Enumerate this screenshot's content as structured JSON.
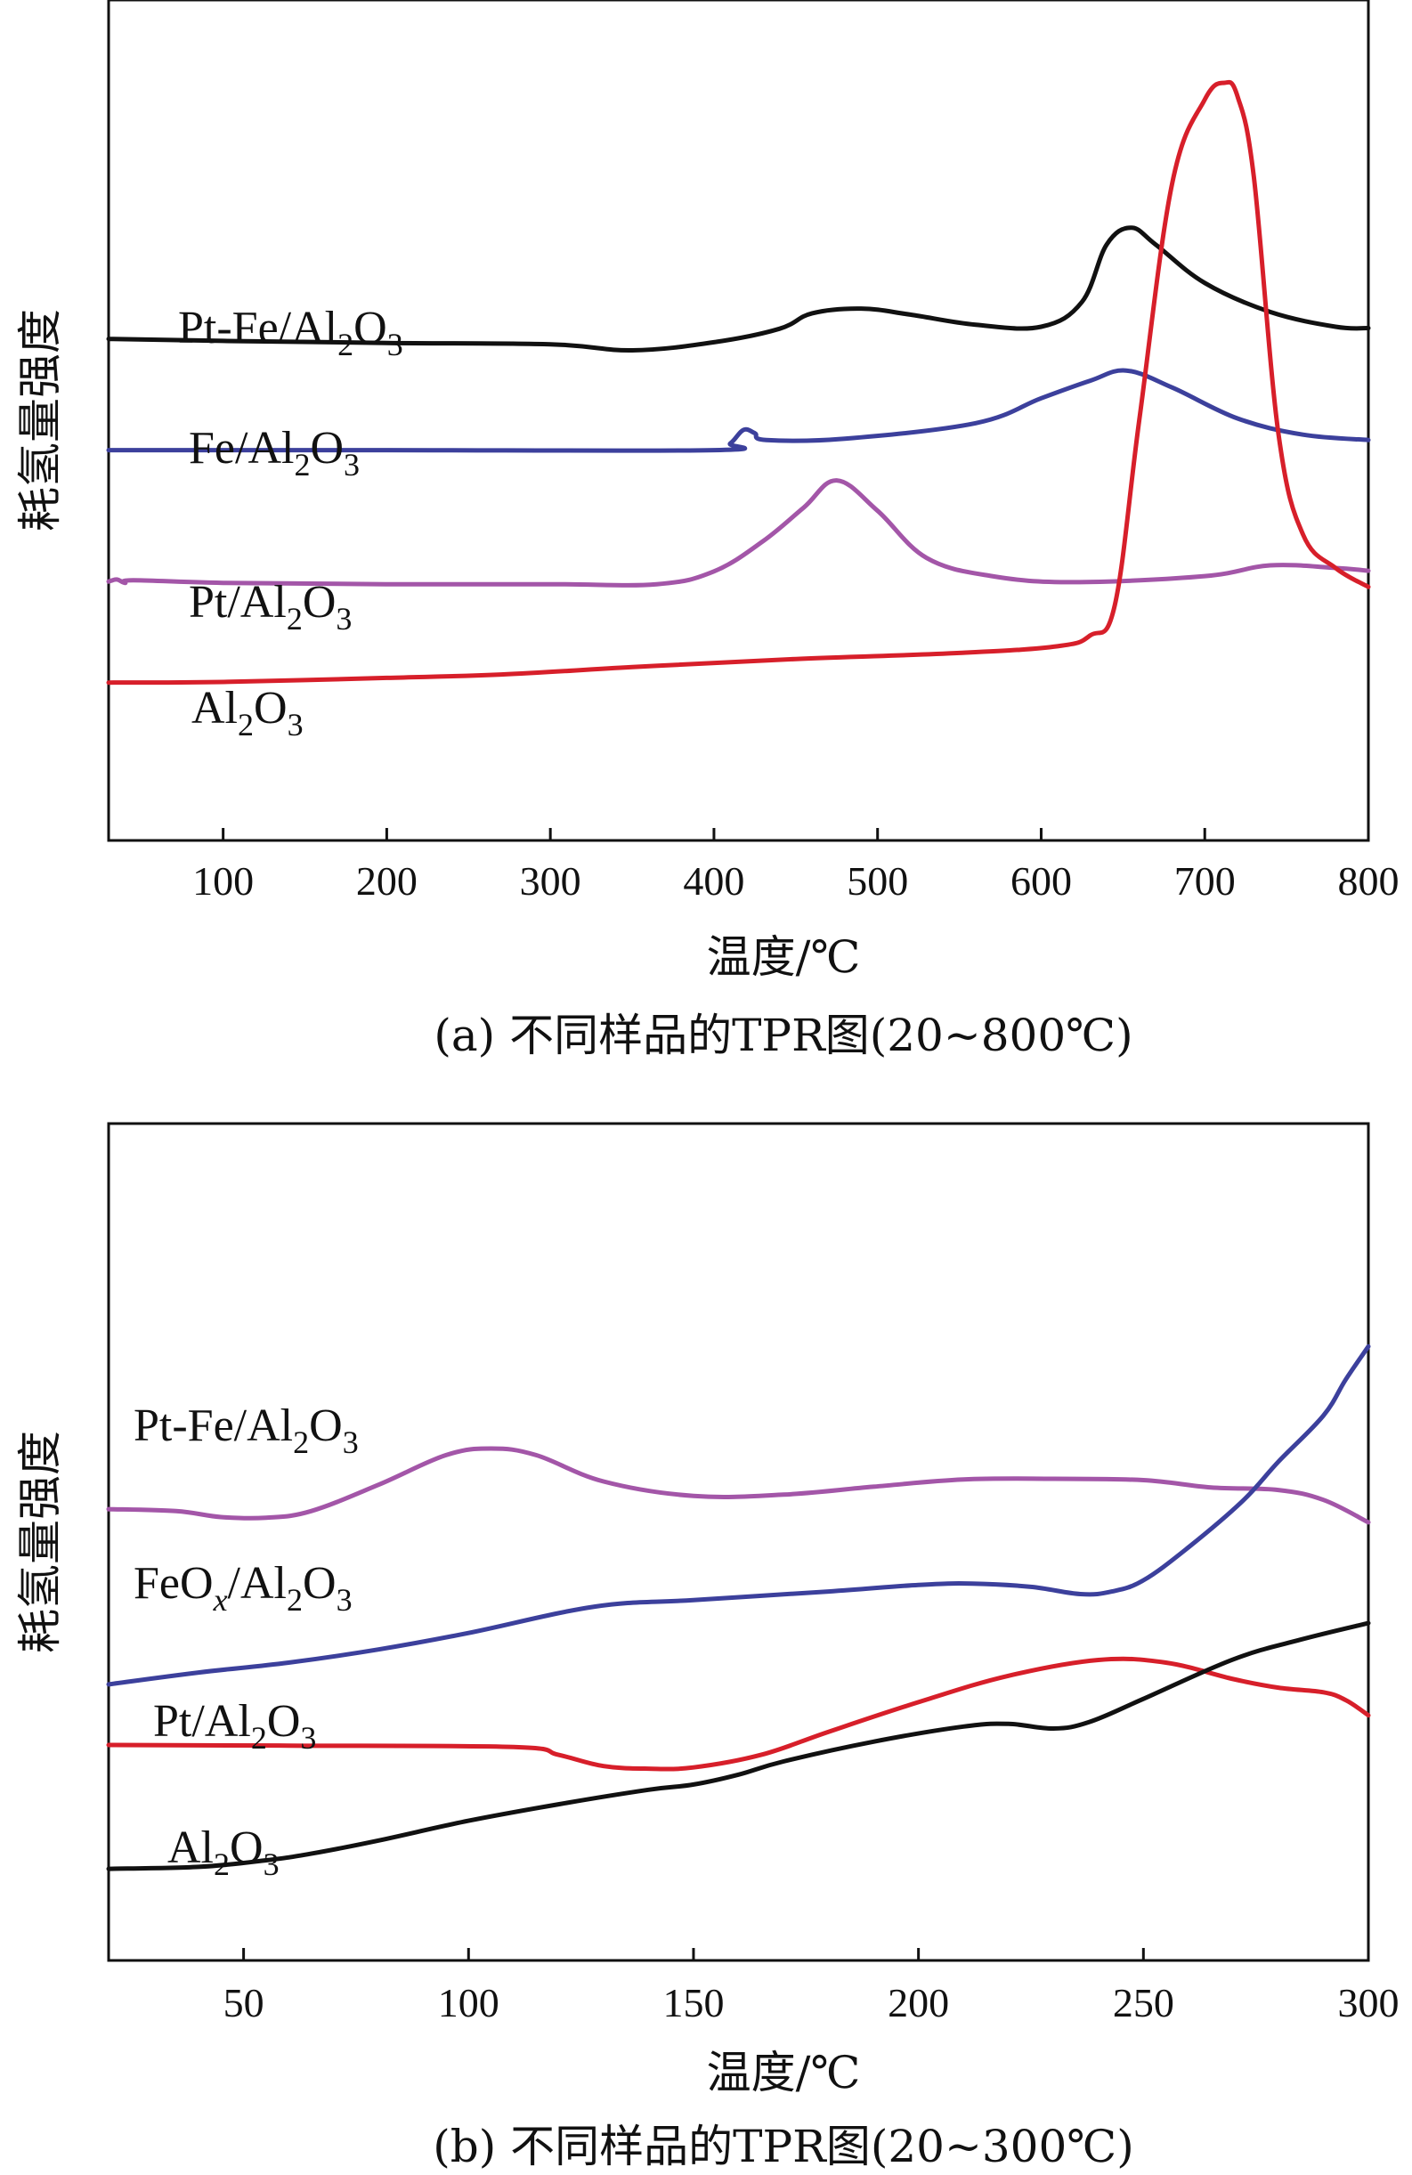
{
  "chart_data": [
    {
      "type": "line",
      "panel": "a",
      "caption": "(a) 不同样品的TPR图(20~800℃)",
      "xlabel": "温度/℃",
      "ylabel": "耗氢量强度",
      "xlim": [
        30,
        800
      ],
      "ylim": [
        0,
        100
      ],
      "xticks": [
        100,
        200,
        300,
        400,
        500,
        600,
        700,
        800
      ],
      "series": [
        {
          "name": "Pt-Fe/Al2O3",
          "label": {
            "main": "Pt-Fe/Al",
            "sub1": "2",
            "mid": "O",
            "sub2": "3"
          },
          "color": "#111111",
          "x": [
            30,
            100,
            200,
            300,
            350,
            400,
            440,
            460,
            490,
            520,
            560,
            600,
            625,
            640,
            655,
            670,
            700,
            740,
            780,
            800
          ],
          "y": [
            62.0,
            61.7,
            61.4,
            61.2,
            60.3,
            61.5,
            63.5,
            65.8,
            66.5,
            65.6,
            64.1,
            63.8,
            67.5,
            76.0,
            78.5,
            76.0,
            70.3,
            66.0,
            63.8,
            63.6
          ]
        },
        {
          "name": "Fe/Al2O3",
          "label": {
            "main": "Fe/Al",
            "sub1": "2",
            "mid": "O",
            "sub2": "3"
          },
          "color": "#3c409c",
          "x": [
            30,
            200,
            400,
            410,
            418,
            425,
            432,
            480,
            560,
            600,
            630,
            652,
            680,
            720,
            760,
            800
          ],
          "y": [
            45.5,
            45.5,
            45.5,
            46.5,
            48.5,
            48.0,
            47.0,
            47.2,
            49.5,
            53.2,
            55.8,
            57.3,
            54.8,
            50.2,
            47.8,
            47.0
          ]
        },
        {
          "name": "Pt/Al2O3",
          "label": {
            "main": "Pt/Al",
            "sub1": "2",
            "mid": "O",
            "sub2": "3"
          },
          "color": "#a356a8",
          "x": [
            30,
            35,
            40,
            45,
            100,
            200,
            300,
            365,
            400,
            430,
            455,
            475,
            500,
            530,
            570,
            620,
            700,
            740,
            780,
            800
          ],
          "y": [
            26.0,
            26.3,
            25.8,
            26.2,
            25.8,
            25.6,
            25.6,
            25.6,
            27.5,
            32.0,
            37.0,
            41.0,
            36.5,
            29.5,
            26.8,
            25.9,
            26.8,
            28.4,
            28.0,
            27.6
          ]
        },
        {
          "name": "Al2O3",
          "label": {
            "main": "Al",
            "sub1": "2",
            "mid": "O",
            "sub2": "3"
          },
          "color": "#d71f2a",
          "x": [
            30,
            100,
            200,
            270,
            350,
            450,
            550,
            610,
            630,
            645,
            660,
            680,
            700,
            712,
            720,
            730,
            745,
            760,
            780,
            800
          ],
          "y": [
            11.0,
            11.1,
            11.7,
            12.2,
            13.3,
            14.5,
            15.4,
            16.4,
            18.0,
            22.5,
            50.0,
            85.0,
            97.5,
            100.0,
            98.0,
            86.0,
            48.0,
            33.0,
            28.0,
            25.2
          ]
        }
      ]
    },
    {
      "type": "line",
      "panel": "b",
      "caption": "(b) 不同样品的TPR图(20~300℃)",
      "xlabel": "温度/℃",
      "ylabel": "耗氢量强度",
      "xlim": [
        20,
        300
      ],
      "ylim": [
        0,
        100
      ],
      "xticks": [
        50,
        100,
        150,
        200,
        250,
        300
      ],
      "series": [
        {
          "name": "Pt-Fe/Al2O3",
          "label": {
            "main": "Pt-Fe/Al",
            "sub1": "2",
            "mid": "O",
            "sub2": "3"
          },
          "color": "#a356a8",
          "x": [
            20,
            35,
            45,
            55,
            65,
            80,
            95,
            105,
            115,
            130,
            150,
            170,
            190,
            210,
            230,
            250,
            265,
            280,
            290,
            300
          ],
          "y": [
            60.8,
            60.5,
            59.6,
            59.5,
            60.5,
            64.5,
            69.0,
            70.0,
            69.0,
            65.0,
            62.8,
            63.0,
            64.2,
            65.3,
            65.4,
            65.2,
            64.1,
            63.7,
            62.2,
            58.8
          ]
        },
        {
          "name": "FeOx/Al2O3",
          "label": {
            "main": "FeO",
            "italic": "x",
            "main2": "/Al",
            "sub1": "2",
            "mid": "O",
            "sub2": "3"
          },
          "color": "#3c409c",
          "x": [
            20,
            40,
            60,
            80,
            100,
            128,
            150,
            180,
            200,
            212,
            225,
            236,
            243,
            250,
            260,
            272,
            280,
            290,
            295,
            300
          ],
          "y": [
            34.2,
            36.0,
            37.5,
            39.5,
            42.0,
            46.0,
            47.0,
            48.3,
            49.3,
            49.5,
            49.0,
            47.9,
            48.3,
            50.0,
            55.0,
            62.0,
            68.0,
            75.0,
            80.5,
            85.5
          ]
        },
        {
          "name": "Pt/Al2O3",
          "label": {
            "main": "Pt/Al",
            "sub1": "2",
            "mid": "O",
            "sub2": "3"
          },
          "color": "#d71f2a",
          "x": [
            20,
            60,
            110,
            120,
            130,
            140,
            150,
            165,
            180,
            200,
            220,
            240,
            255,
            270,
            280,
            290,
            295,
            300
          ],
          "y": [
            25.0,
            24.9,
            24.7,
            23.5,
            21.8,
            21.4,
            21.6,
            23.5,
            27.0,
            31.5,
            35.5,
            37.9,
            37.5,
            35.0,
            33.7,
            33.0,
            31.8,
            29.5
          ]
        },
        {
          "name": "Al2O3",
          "label": {
            "main": "Al",
            "sub1": "2",
            "mid": "O",
            "sub2": "3"
          },
          "color": "#111111",
          "x": [
            20,
            40,
            55,
            65,
            80,
            100,
            120,
            140,
            150,
            160,
            170,
            190,
            210,
            220,
            230,
            238,
            250,
            270,
            285,
            300
          ],
          "y": [
            6.2,
            6.5,
            7.5,
            8.5,
            10.5,
            13.5,
            16.0,
            18.2,
            19.0,
            20.5,
            22.5,
            25.5,
            27.8,
            28.2,
            27.5,
            28.5,
            32.0,
            38.0,
            41.0,
            43.5
          ]
        }
      ]
    }
  ]
}
